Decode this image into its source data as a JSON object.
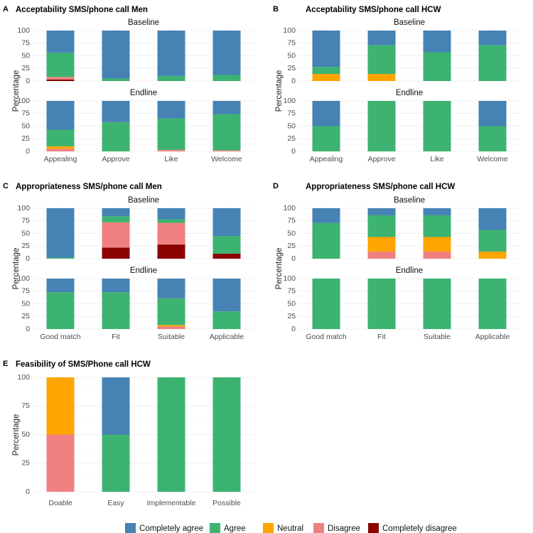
{
  "colors": {
    "Completely agree": "#4682b4",
    "Agree": "#3cb371",
    "Neutral": "#ffa500",
    "Disagree": "#f08080",
    "Completely disagree": "#8b0000"
  },
  "legend": [
    "Completely agree",
    "Agree",
    "Neutral",
    "Disagree",
    "Completely disagree"
  ],
  "ylabel": "Percentage",
  "chart_data": [
    {
      "panel": "A",
      "title": "Acceptability SMS/phone call Men",
      "type": "bar",
      "stacked": true,
      "ylim": [
        0,
        100
      ],
      "yticks": [
        0,
        25,
        50,
        75,
        100
      ],
      "categories": [
        "Appealing",
        "Approve",
        "Like",
        "Welcome"
      ],
      "facets": [
        {
          "label": "Baseline",
          "series": [
            {
              "name": "Completely disagree",
              "values": [
                3,
                0,
                0,
                0
              ]
            },
            {
              "name": "Disagree",
              "values": [
                5,
                0,
                0,
                0
              ]
            },
            {
              "name": "Neutral",
              "values": [
                0,
                0,
                0,
                0
              ]
            },
            {
              "name": "Agree",
              "values": [
                48,
                5,
                10,
                12
              ]
            },
            {
              "name": "Completely agree",
              "values": [
                44,
                95,
                90,
                88
              ]
            }
          ]
        },
        {
          "label": "Endline",
          "series": [
            {
              "name": "Completely disagree",
              "values": [
                0,
                0,
                0,
                0
              ]
            },
            {
              "name": "Disagree",
              "values": [
                5,
                0,
                3,
                2
              ]
            },
            {
              "name": "Neutral",
              "values": [
                5,
                0,
                0,
                0
              ]
            },
            {
              "name": "Agree",
              "values": [
                33,
                58,
                62,
                72
              ]
            },
            {
              "name": "Completely agree",
              "values": [
                57,
                42,
                35,
                26
              ]
            }
          ]
        }
      ]
    },
    {
      "panel": "B",
      "title": "Acceptability SMS/phone call HCW",
      "type": "bar",
      "stacked": true,
      "ylim": [
        0,
        100
      ],
      "yticks": [
        0,
        25,
        50,
        75,
        100
      ],
      "categories": [
        "Appealing",
        "Approve",
        "Like",
        "Welcome"
      ],
      "facets": [
        {
          "label": "Baseline",
          "series": [
            {
              "name": "Completely disagree",
              "values": [
                0,
                0,
                0,
                0
              ]
            },
            {
              "name": "Disagree",
              "values": [
                0,
                0,
                0,
                0
              ]
            },
            {
              "name": "Neutral",
              "values": [
                14,
                14,
                0,
                0
              ]
            },
            {
              "name": "Agree",
              "values": [
                14,
                57,
                57,
                71
              ]
            },
            {
              "name": "Completely agree",
              "values": [
                72,
                29,
                43,
                29
              ]
            }
          ]
        },
        {
          "label": "Endline",
          "series": [
            {
              "name": "Completely disagree",
              "values": [
                0,
                0,
                0,
                0
              ]
            },
            {
              "name": "Disagree",
              "values": [
                0,
                0,
                0,
                0
              ]
            },
            {
              "name": "Neutral",
              "values": [
                0,
                0,
                0,
                0
              ]
            },
            {
              "name": "Agree",
              "values": [
                50,
                100,
                100,
                50
              ]
            },
            {
              "name": "Completely agree",
              "values": [
                50,
                0,
                0,
                50
              ]
            }
          ]
        }
      ]
    },
    {
      "panel": "C",
      "title": "Appropriateness SMS/phone call Men",
      "type": "bar",
      "stacked": true,
      "ylim": [
        0,
        100
      ],
      "yticks": [
        0,
        25,
        50,
        75,
        100
      ],
      "categories": [
        "Good match",
        "Fit",
        "Suitable",
        "Applicable"
      ],
      "facets": [
        {
          "label": "Baseline",
          "series": [
            {
              "name": "Completely disagree",
              "values": [
                0,
                22,
                28,
                10
              ]
            },
            {
              "name": "Disagree",
              "values": [
                0,
                50,
                43,
                0
              ]
            },
            {
              "name": "Neutral",
              "values": [
                0,
                0,
                0,
                0
              ]
            },
            {
              "name": "Agree",
              "values": [
                2,
                12,
                7,
                35
              ]
            },
            {
              "name": "Completely agree",
              "values": [
                98,
                16,
                22,
                55
              ]
            }
          ]
        },
        {
          "label": "Endline",
          "series": [
            {
              "name": "Completely disagree",
              "values": [
                0,
                0,
                0,
                0
              ]
            },
            {
              "name": "Disagree",
              "values": [
                0,
                0,
                5,
                0
              ]
            },
            {
              "name": "Neutral",
              "values": [
                0,
                0,
                3,
                0
              ]
            },
            {
              "name": "Agree",
              "values": [
                73,
                73,
                53,
                35
              ]
            },
            {
              "name": "Completely agree",
              "values": [
                27,
                27,
                39,
                65
              ]
            }
          ]
        }
      ]
    },
    {
      "panel": "D",
      "title": "Appropriateness SMS/phone call HCW",
      "type": "bar",
      "stacked": true,
      "ylim": [
        0,
        100
      ],
      "yticks": [
        0,
        25,
        50,
        75,
        100
      ],
      "categories": [
        "Good match",
        "Fit",
        "Suitable",
        "Applicable"
      ],
      "facets": [
        {
          "label": "Baseline",
          "series": [
            {
              "name": "Completely disagree",
              "values": [
                0,
                0,
                0,
                0
              ]
            },
            {
              "name": "Disagree",
              "values": [
                0,
                14,
                14,
                0
              ]
            },
            {
              "name": "Neutral",
              "values": [
                0,
                29,
                29,
                14
              ]
            },
            {
              "name": "Agree",
              "values": [
                71,
                43,
                43,
                43
              ]
            },
            {
              "name": "Completely agree",
              "values": [
                29,
                14,
                14,
                43
              ]
            }
          ]
        },
        {
          "label": "Endline",
          "series": [
            {
              "name": "Completely disagree",
              "values": [
                0,
                0,
                0,
                0
              ]
            },
            {
              "name": "Disagree",
              "values": [
                0,
                0,
                0,
                0
              ]
            },
            {
              "name": "Neutral",
              "values": [
                0,
                0,
                0,
                0
              ]
            },
            {
              "name": "Agree",
              "values": [
                100,
                100,
                100,
                100
              ]
            },
            {
              "name": "Completely agree",
              "values": [
                0,
                0,
                0,
                0
              ]
            }
          ]
        }
      ]
    },
    {
      "panel": "E",
      "title": "Feasibility of SMS/Phone call HCW",
      "type": "bar",
      "stacked": true,
      "ylim": [
        0,
        100
      ],
      "yticks": [
        0,
        25,
        50,
        75,
        100
      ],
      "categories": [
        "Doable",
        "Easy",
        "Implementable",
        "Possible"
      ],
      "facets": [
        {
          "label": "",
          "series": [
            {
              "name": "Completely disagree",
              "values": [
                0,
                0,
                0,
                0
              ]
            },
            {
              "name": "Disagree",
              "values": [
                50,
                0,
                0,
                0
              ]
            },
            {
              "name": "Neutral",
              "values": [
                50,
                0,
                0,
                0
              ]
            },
            {
              "name": "Agree",
              "values": [
                0,
                50,
                100,
                100
              ]
            },
            {
              "name": "Completely agree",
              "values": [
                0,
                50,
                0,
                0
              ]
            }
          ]
        }
      ]
    }
  ]
}
